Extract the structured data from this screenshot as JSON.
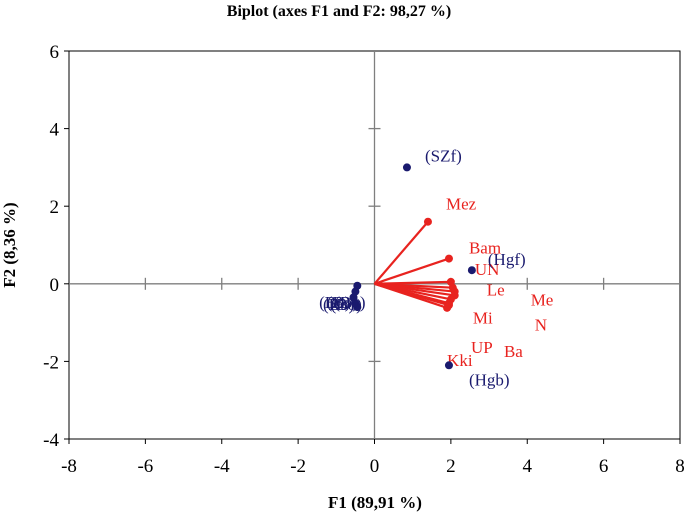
{
  "chart_data": {
    "type": "scatter",
    "title": "Biplot (axes F1 and F2: 98,27 %)",
    "xlabel": "F1 (89,91 %)",
    "ylabel": "F2 (8,36 %)",
    "xlim": [
      -8,
      8
    ],
    "ylim": [
      -4,
      6
    ],
    "xticks": [
      "-8",
      "-6",
      "-4",
      "-2",
      "0",
      "2",
      "4",
      "6",
      "8"
    ],
    "yticks": [
      "-4",
      "-2",
      "0",
      "2",
      "4",
      "6"
    ],
    "grid": false,
    "colors": {
      "observations": "#1a1a6e",
      "variables": "#e8231f",
      "axes": "#7f7f7f"
    },
    "observations": [
      {
        "label": "(SZf)",
        "x": 0.85,
        "y": 3.0
      },
      {
        "label": "(Hgf)",
        "x": 2.55,
        "y": 0.35
      },
      {
        "label": "(Hgb)",
        "x": 1.95,
        "y": -2.1
      },
      {
        "label": "",
        "x": -0.45,
        "y": -0.05
      },
      {
        "label": "",
        "x": -0.5,
        "y": -0.2
      },
      {
        "label": "",
        "x": -0.55,
        "y": -0.35
      },
      {
        "label": "",
        "x": -0.5,
        "y": -0.5
      },
      {
        "label": "",
        "x": -0.45,
        "y": -0.6
      }
    ],
    "cluster_labels": [
      "(Bo)"
    ],
    "variables": [
      {
        "label": "Mez",
        "x": 1.4,
        "y": 1.6
      },
      {
        "label": "Bam",
        "x": 1.95,
        "y": 0.65
      },
      {
        "label": "UN",
        "x": 2.0,
        "y": 0.05
      },
      {
        "label": "Le",
        "x": 2.05,
        "y": -0.1
      },
      {
        "label": "Me",
        "x": 2.1,
        "y": -0.2
      },
      {
        "label": "N",
        "x": 2.1,
        "y": -0.3
      },
      {
        "label": "Mi",
        "x": 2.0,
        "y": -0.4
      },
      {
        "label": "UP",
        "x": 1.95,
        "y": -0.5
      },
      {
        "label": "Ba",
        "x": 1.95,
        "y": -0.55
      },
      {
        "label": "Kki",
        "x": 1.9,
        "y": -0.62
      }
    ]
  }
}
